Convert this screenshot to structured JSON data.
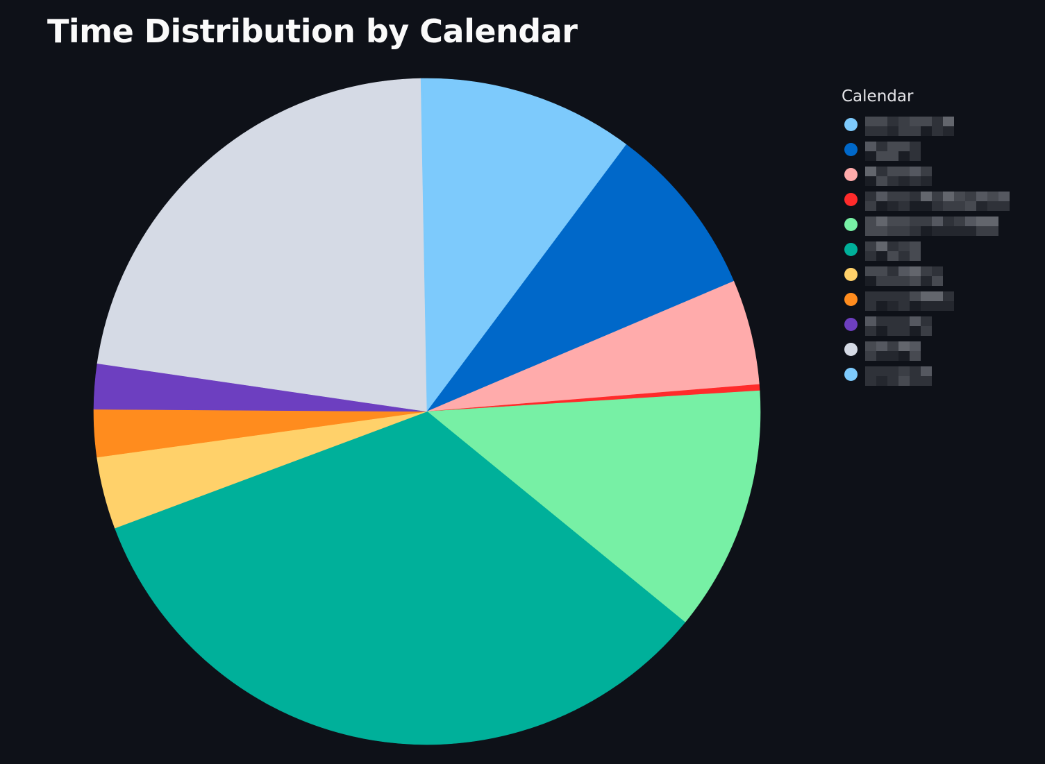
{
  "chart_data": {
    "type": "pie",
    "title": "Time Distribution by Calendar",
    "legend_title": "Calendar",
    "legend_position": "right",
    "labels_redacted": true,
    "slices": [
      {
        "label": "",
        "value": 10.4,
        "color": "#7dcafc"
      },
      {
        "label": "",
        "value": 8.4,
        "color": "#0068c9"
      },
      {
        "label": "",
        "value": 5.1,
        "color": "#ffabab"
      },
      {
        "label": "",
        "value": 0.3,
        "color": "#ff2b2b"
      },
      {
        "label": "",
        "value": 11.9,
        "color": "#77f0a5"
      },
      {
        "label": "",
        "value": 33.4,
        "color": "#00b09a"
      },
      {
        "label": "",
        "value": 3.5,
        "color": "#ffd16a"
      },
      {
        "label": "",
        "value": 2.3,
        "color": "#ff8c1e"
      },
      {
        "label": "",
        "value": 2.2,
        "color": "#6d3fc0"
      },
      {
        "label": "",
        "value": 22.4,
        "color": "#d5dae5"
      },
      {
        "label": "",
        "value": 0.1,
        "color": "#7dcafc"
      }
    ]
  }
}
